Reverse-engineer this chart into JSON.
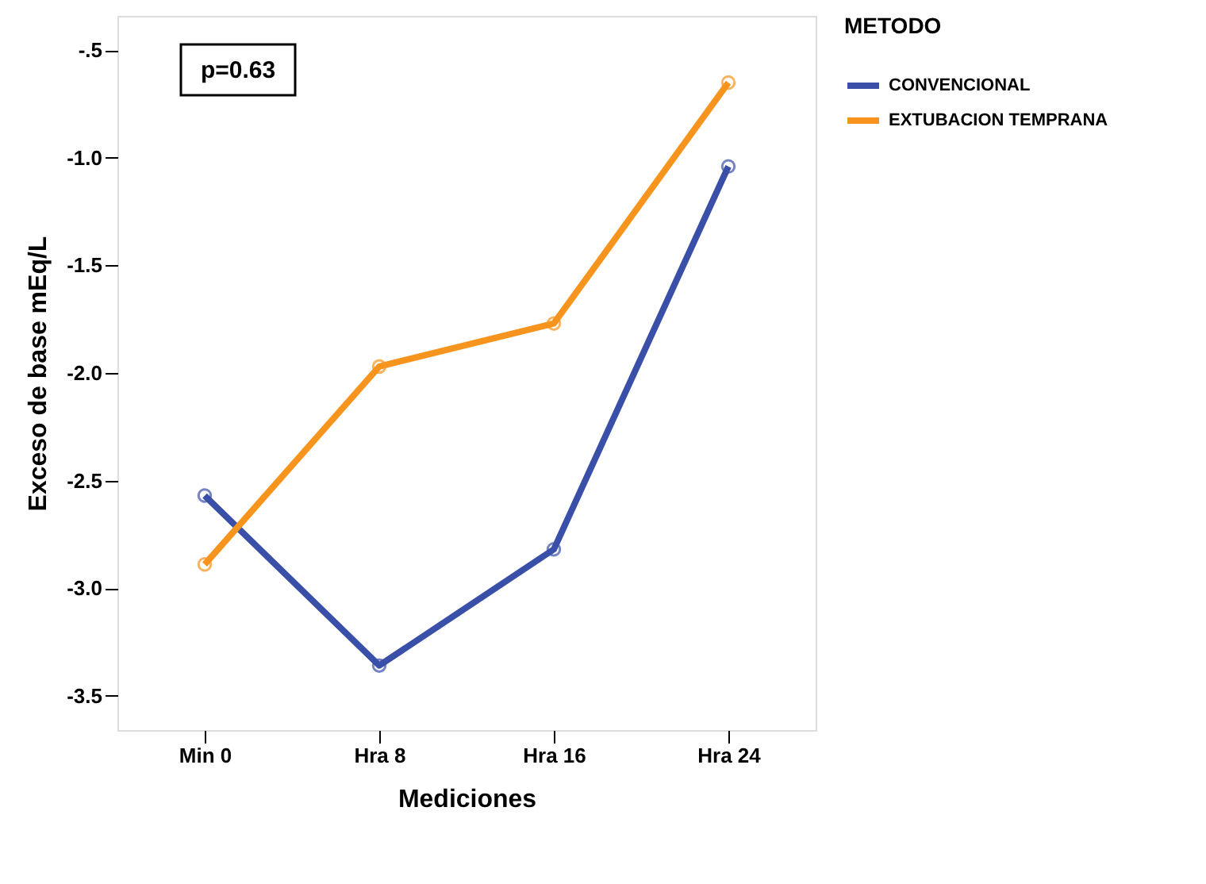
{
  "chart_data": {
    "type": "line",
    "xlabel": "Mediciones",
    "ylabel": "Exceso de base mEq/L",
    "legend_title": "METODO",
    "categories": [
      "Min 0",
      "Hra 8",
      "Hra 16",
      "Hra 24"
    ],
    "series": [
      {
        "name": "CONVENCIONAL",
        "color": "#3a4fa8",
        "values": [
          -2.57,
          -3.36,
          -2.82,
          -1.04
        ]
      },
      {
        "name": "EXTUBACION TEMPRANA",
        "color": "#f7941d",
        "values": [
          -2.89,
          -1.97,
          -1.77,
          -0.65
        ]
      }
    ],
    "ylim": [
      -3.66,
      -0.34
    ],
    "yticks": [
      {
        "value": -0.5,
        "label": "-.5"
      },
      {
        "value": -1.0,
        "label": "-1.0"
      },
      {
        "value": -1.5,
        "label": "-1.5"
      },
      {
        "value": -2.0,
        "label": "-2.0"
      },
      {
        "value": -2.5,
        "label": "-2.5"
      },
      {
        "value": -3.0,
        "label": "-3.0"
      },
      {
        "value": -3.5,
        "label": "-3.5"
      }
    ],
    "annotations": [
      "p=0.63"
    ],
    "grid": false,
    "legend": "right",
    "marker": "circle",
    "line_style": "solid"
  }
}
